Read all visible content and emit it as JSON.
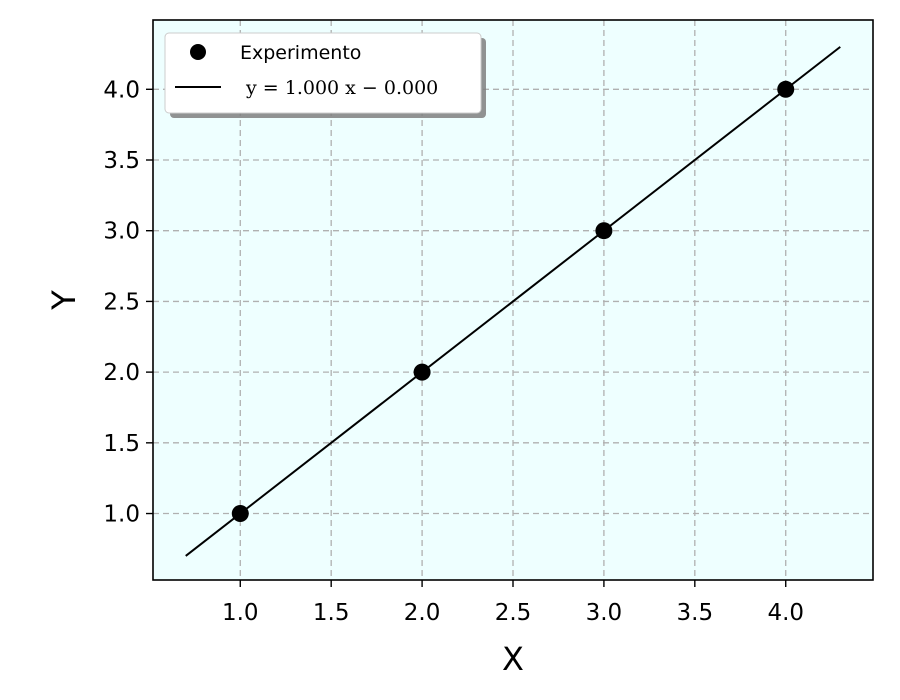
{
  "chart_data": {
    "type": "scatter",
    "title": "",
    "xlabel": "X",
    "ylabel": "Y",
    "xlim": [
      0.52,
      4.48
    ],
    "ylim": [
      0.53,
      4.49
    ],
    "xticks": [
      1.0,
      1.5,
      2.0,
      2.5,
      3.0,
      3.5,
      4.0
    ],
    "yticks": [
      1.0,
      1.5,
      2.0,
      2.5,
      3.0,
      3.5,
      4.0
    ],
    "xtick_labels": [
      "1.0",
      "1.5",
      "2.0",
      "2.5",
      "3.0",
      "3.5",
      "4.0"
    ],
    "ytick_labels": [
      "1.0",
      "1.5",
      "2.0",
      "2.5",
      "3.0",
      "3.5",
      "4.0"
    ],
    "grid": true,
    "legend_position": "top-left",
    "background_color": "#eeffff",
    "series": [
      {
        "name": "Experimento",
        "kind": "points",
        "color": "#000000",
        "x": [
          1.0,
          2.0,
          3.0,
          4.0
        ],
        "y": [
          1.0,
          2.0,
          3.0,
          4.0
        ]
      },
      {
        "name": "y = 1.000 x − 0.000",
        "kind": "line",
        "color": "#000000",
        "x": [
          0.7,
          4.3
        ],
        "y": [
          0.7,
          4.3
        ]
      }
    ]
  }
}
